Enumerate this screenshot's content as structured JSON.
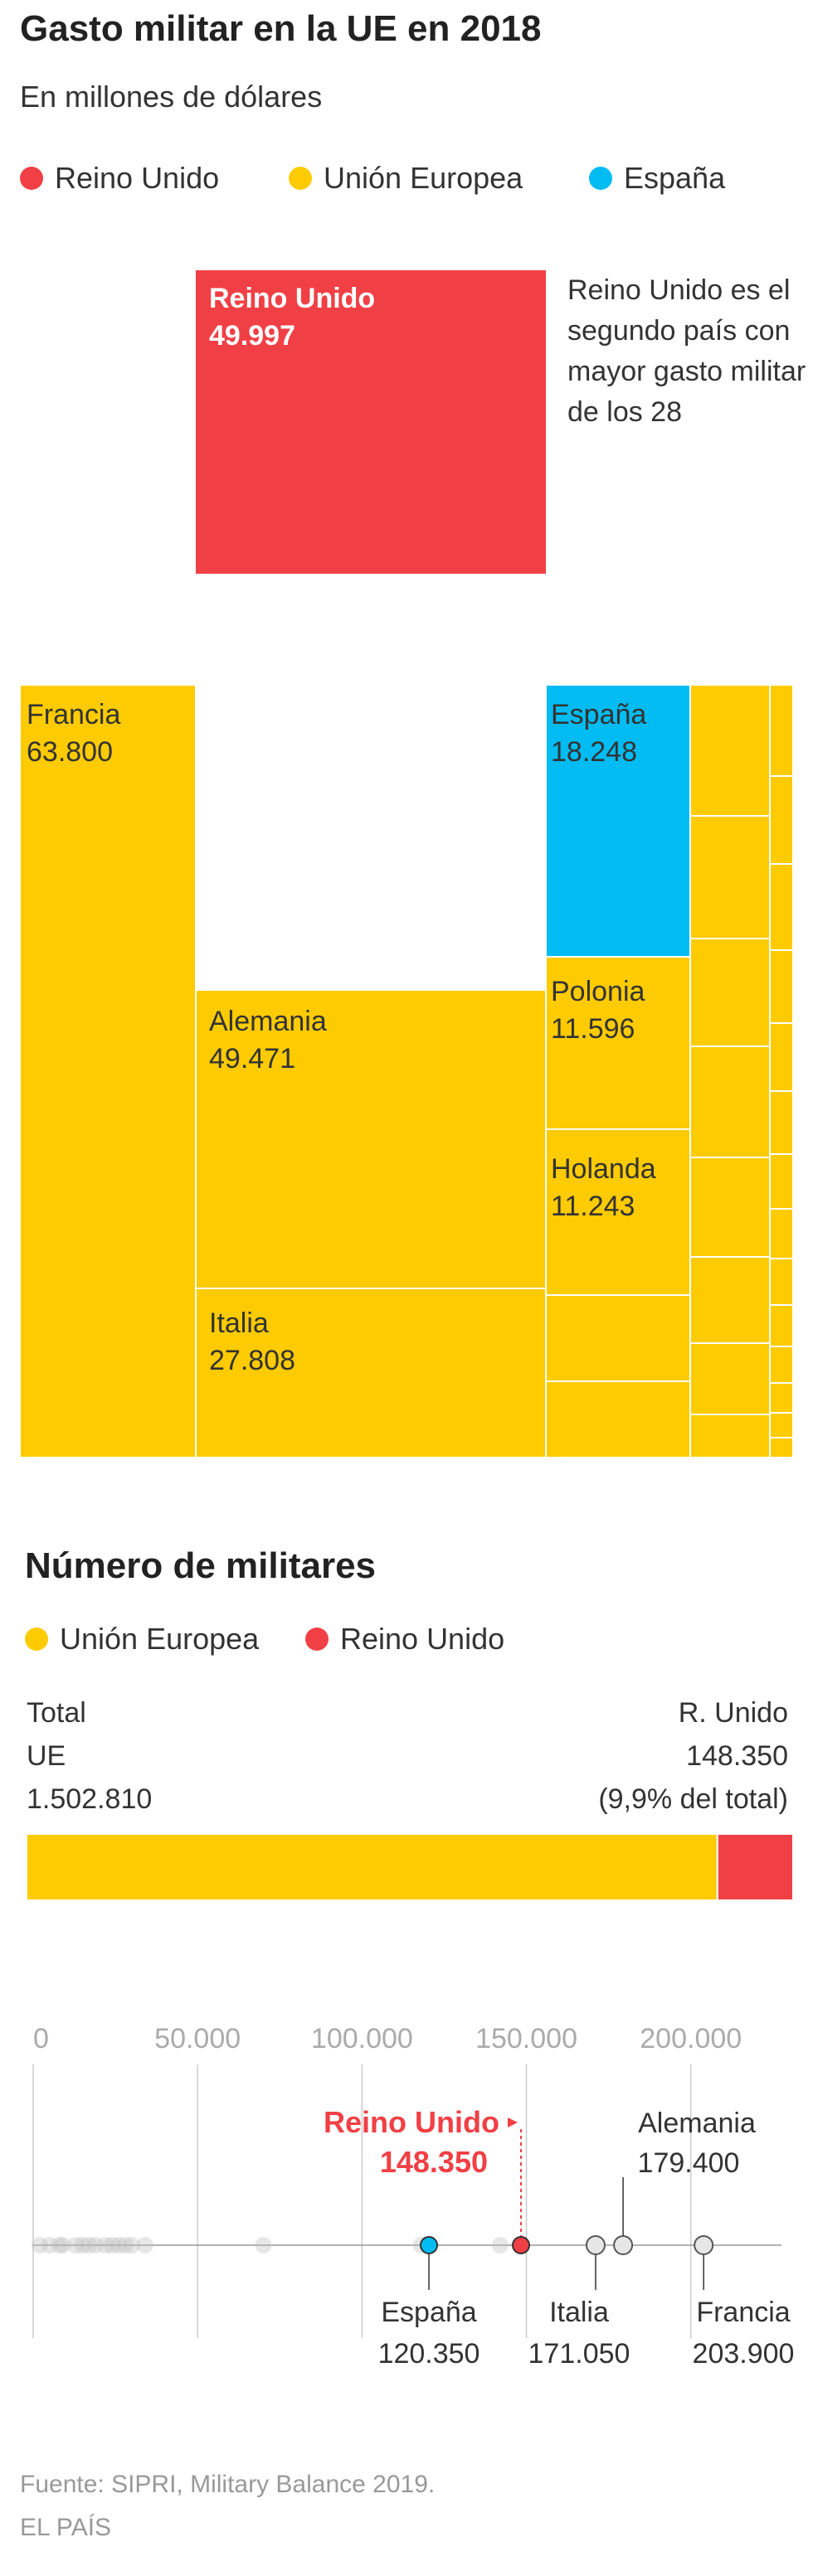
{
  "title": "Gasto militar en la UE en 2018",
  "subtitle": "En millones de dólares",
  "legend1": [
    {
      "label": "Reino Unido",
      "color": "#f04045"
    },
    {
      "label": "Unión Europea",
      "color": "#fecb00"
    },
    {
      "label": "España",
      "color": "#00bcf2"
    }
  ],
  "uk_note": "Reino Unido es el segundo país con mayor gasto militar de los 28",
  "treemap_labels": {
    "uk_name": "Reino Unido",
    "uk_value": "49.997",
    "francia_name": "Francia",
    "francia_value": "63.800",
    "alemania_name": "Alemania",
    "alemania_value": "49.471",
    "italia_name": "Italia",
    "italia_value": "27.808",
    "espana_name": "España",
    "espana_value": "18.248",
    "polonia_name": "Polonia",
    "polonia_value": "11.596",
    "holanda_name": "Holanda",
    "holanda_value": "11.243"
  },
  "section2_title": "Número de militares",
  "legend2": [
    {
      "label": "Unión Europea",
      "color": "#fecb00"
    },
    {
      "label": "Reino Unido",
      "color": "#f04045"
    }
  ],
  "stack_labels": {
    "left_line1": "Total",
    "left_line2": "UE",
    "left_line3": "1.502.810",
    "right_line1": "R. Unido",
    "right_line2": "148.350",
    "right_line3": "(9,9% del total)"
  },
  "colors": {
    "uk": "#f04045",
    "eu": "#fecb00",
    "spain": "#00bcf2",
    "axis": "#cccccc",
    "tick_text": "#aaaaaa",
    "grey_dot": "#bbbbbb"
  },
  "chart_data": [
    {
      "type": "treemap",
      "title": "Gasto militar en la UE en 2018",
      "unit": "En millones de dólares",
      "items": [
        {
          "name": "Reino Unido",
          "value": 49997,
          "group": "Reino Unido"
        },
        {
          "name": "Francia",
          "value": 63800,
          "group": "Unión Europea"
        },
        {
          "name": "Alemania",
          "value": 49471,
          "group": "Unión Europea"
        },
        {
          "name": "Italia",
          "value": 27808,
          "group": "Unión Europea"
        },
        {
          "name": "España",
          "value": 18248,
          "group": "España"
        },
        {
          "name": "Polonia",
          "value": 11596,
          "group": "Unión Europea"
        },
        {
          "name": "Holanda",
          "value": 11243,
          "group": "Unión Europea"
        }
      ]
    },
    {
      "type": "bar",
      "title": "Número de militares",
      "orientation": "horizontal-stacked",
      "series": [
        {
          "name": "Unión Europea",
          "value": 1354460
        },
        {
          "name": "Reino Unido",
          "value": 148350
        }
      ],
      "total": 1502810
    },
    {
      "type": "scatter",
      "xlim": [
        0,
        220000
      ],
      "xticks": [
        0,
        50000,
        100000,
        150000,
        200000
      ],
      "xtick_labels": [
        "0",
        "50.000",
        "100.000",
        "150.000",
        "200.000"
      ],
      "points": [
        {
          "name": "Reino Unido",
          "x": 148350,
          "label": "148.350",
          "highlight": "uk"
        },
        {
          "name": "España",
          "x": 120350,
          "label": "120.350",
          "highlight": "spain"
        },
        {
          "name": "Italia",
          "x": 171050,
          "label": "171.050",
          "highlight": "outline"
        },
        {
          "name": "Alemania",
          "x": 179400,
          "label": "179.400",
          "highlight": "outline"
        },
        {
          "name": "Francia",
          "x": 203900,
          "label": "203.900",
          "highlight": "outline"
        },
        {
          "x": 2000
        },
        {
          "x": 5000
        },
        {
          "x": 8000
        },
        {
          "x": 9000
        },
        {
          "x": 13000
        },
        {
          "x": 15000
        },
        {
          "x": 17000
        },
        {
          "x": 19000
        },
        {
          "x": 22000
        },
        {
          "x": 24000
        },
        {
          "x": 26000
        },
        {
          "x": 28000
        },
        {
          "x": 30000
        },
        {
          "x": 34000
        },
        {
          "x": 70000
        },
        {
          "x": 118000
        },
        {
          "x": 142000
        }
      ]
    }
  ],
  "footer_source": "Fuente: SIPRI, Military Balance 2019.",
  "footer_brand": "EL PAÍS"
}
